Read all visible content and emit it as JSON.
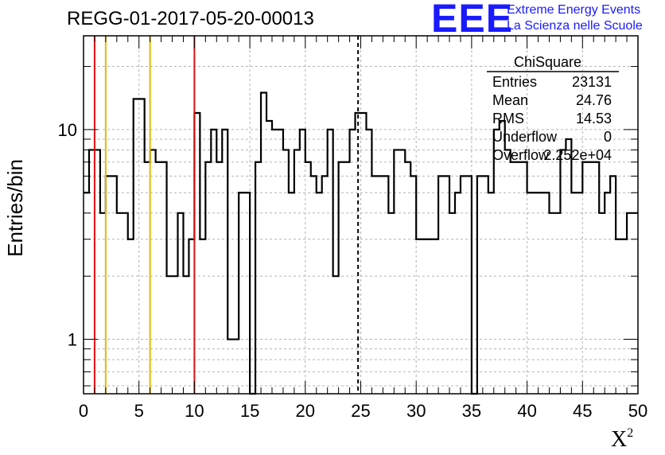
{
  "title": "REGG-01-2017-05-20-00013",
  "logo": {
    "mark": "EEE",
    "line1": "Extreme Energy Events",
    "line2": "La Scienza nelle Scuole"
  },
  "stats": {
    "title": "ChiSquare",
    "rows": [
      {
        "label": "Entries",
        "value": "23131"
      },
      {
        "label": "Mean",
        "value": "24.76"
      },
      {
        "label": "RMS",
        "value": "14.53"
      },
      {
        "label": "Underflow",
        "value": "0"
      },
      {
        "label": "Overflow",
        "value": "2.252e+04"
      }
    ]
  },
  "chart_data": {
    "type": "histogram",
    "title": "REGG-01-2017-05-20-00013",
    "xlabel": "X",
    "xlabel_sup": "2",
    "ylabel": "Entries/bin",
    "xlim": [
      0,
      50
    ],
    "ylim": [
      0.55,
      28
    ],
    "yscale": "log",
    "grid": true,
    "bin_width": 0.5,
    "x_ticks": [
      0,
      5,
      10,
      15,
      20,
      25,
      30,
      35,
      40,
      45,
      50
    ],
    "x_tick_labels": [
      "0",
      "5",
      "10",
      "15",
      "20",
      "25",
      "30",
      "35",
      "40",
      "45",
      "50"
    ],
    "y_ticks": [
      1,
      10
    ],
    "y_tick_labels": [
      "1",
      "10"
    ],
    "values": [
      5,
      8,
      8,
      4,
      6,
      6,
      4,
      4,
      3,
      14,
      14,
      7,
      8,
      7,
      7,
      2,
      2,
      4,
      2,
      3,
      12,
      3,
      7,
      10,
      7,
      10,
      1,
      1,
      5,
      5,
      0,
      7,
      15,
      11,
      10,
      10,
      8,
      5,
      8,
      10,
      7,
      6,
      5,
      6,
      10,
      2,
      7,
      7,
      10,
      12,
      12,
      10,
      6,
      6,
      6,
      4,
      8,
      8,
      7,
      6,
      3,
      3,
      3,
      3,
      6,
      6,
      4,
      5,
      6,
      6,
      0,
      6,
      6,
      5,
      10,
      11,
      8,
      7,
      7,
      7,
      5,
      5,
      5,
      5,
      4,
      4,
      8,
      9,
      5,
      5,
      7,
      7,
      7,
      4,
      5,
      6,
      3,
      3,
      4,
      4
    ],
    "vertical_lines": [
      {
        "x": 1,
        "color": "#dd1111",
        "style": "solid"
      },
      {
        "x": 2,
        "color": "#e8b800",
        "style": "solid"
      },
      {
        "x": 6,
        "color": "#e8b800",
        "style": "solid"
      },
      {
        "x": 10,
        "color": "#dd1111",
        "style": "solid"
      },
      {
        "x": 24.76,
        "color": "#000000",
        "style": "dashed"
      }
    ]
  }
}
